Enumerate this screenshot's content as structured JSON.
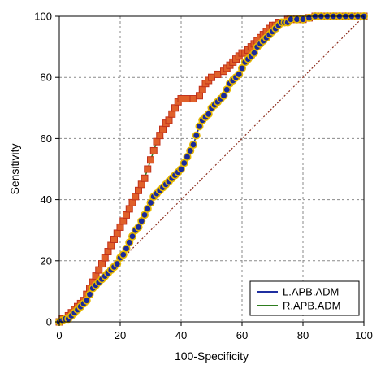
{
  "chart_data": {
    "type": "line",
    "xlabel": "100-Specificity",
    "ylabel": "Sensitivity",
    "xlim": [
      0,
      100
    ],
    "ylim": [
      0,
      100
    ],
    "x_ticks": [
      0,
      20,
      40,
      60,
      80,
      100
    ],
    "y_ticks": [
      0,
      20,
      40,
      60,
      80,
      100
    ],
    "grid": true,
    "legend_position": "bottom-right",
    "reference_line": {
      "from": [
        0,
        0
      ],
      "to": [
        100,
        100
      ],
      "color": "#8b2a1a",
      "style": "dotted"
    },
    "series": [
      {
        "name": "L.APB.ADM",
        "line_color": "#1f2fa0",
        "marker": "circle",
        "marker_fill": "#1a2a9a",
        "marker_edge": "#e6b800",
        "points": [
          [
            0,
            0
          ],
          [
            1,
            0.5
          ],
          [
            2,
            1
          ],
          [
            3,
            1
          ],
          [
            4,
            2
          ],
          [
            5,
            3
          ],
          [
            6,
            4
          ],
          [
            7,
            5
          ],
          [
            8,
            6
          ],
          [
            9,
            7
          ],
          [
            10,
            9
          ],
          [
            11,
            11
          ],
          [
            12,
            12
          ],
          [
            13,
            13
          ],
          [
            14,
            14
          ],
          [
            15,
            15
          ],
          [
            16,
            16
          ],
          [
            17,
            17
          ],
          [
            18,
            18
          ],
          [
            19,
            19
          ],
          [
            20,
            21
          ],
          [
            21,
            22
          ],
          [
            22,
            24
          ],
          [
            23,
            26
          ],
          [
            24,
            28
          ],
          [
            25,
            30
          ],
          [
            26,
            31
          ],
          [
            27,
            33
          ],
          [
            28,
            35
          ],
          [
            29,
            37
          ],
          [
            30,
            39
          ],
          [
            31,
            41
          ],
          [
            32,
            42
          ],
          [
            33,
            43
          ],
          [
            34,
            44
          ],
          [
            35,
            45
          ],
          [
            36,
            46
          ],
          [
            37,
            47
          ],
          [
            38,
            48
          ],
          [
            39,
            49
          ],
          [
            40,
            50
          ],
          [
            41,
            52
          ],
          [
            42,
            54
          ],
          [
            43,
            56
          ],
          [
            44,
            58
          ],
          [
            45,
            61
          ],
          [
            46,
            64
          ],
          [
            47,
            66
          ],
          [
            48,
            67
          ],
          [
            49,
            68
          ],
          [
            50,
            70
          ],
          [
            51,
            71
          ],
          [
            52,
            72
          ],
          [
            53,
            73
          ],
          [
            54,
            74
          ],
          [
            55,
            76
          ],
          [
            56,
            78
          ],
          [
            57,
            79
          ],
          [
            58,
            80
          ],
          [
            59,
            81
          ],
          [
            60,
            83
          ],
          [
            61,
            85
          ],
          [
            62,
            86
          ],
          [
            63,
            87
          ],
          [
            64,
            88
          ],
          [
            65,
            90
          ],
          [
            66,
            91
          ],
          [
            67,
            92
          ],
          [
            68,
            93
          ],
          [
            69,
            94
          ],
          [
            70,
            95
          ],
          [
            71,
            96
          ],
          [
            72,
            97
          ],
          [
            73,
            98
          ],
          [
            74,
            98
          ],
          [
            75,
            98
          ],
          [
            76,
            99
          ],
          [
            78,
            99
          ],
          [
            80,
            99
          ],
          [
            82,
            99.5
          ],
          [
            84,
            100
          ],
          [
            86,
            100
          ],
          [
            88,
            100
          ],
          [
            90,
            100
          ],
          [
            92,
            100
          ],
          [
            94,
            100
          ],
          [
            96,
            100
          ],
          [
            98,
            100
          ],
          [
            100,
            100
          ]
        ]
      },
      {
        "name": "R.APB.ADM",
        "line_color": "#2e7d1f",
        "marker": "square",
        "marker_fill": "#e0602a",
        "marker_edge": "#c0301a",
        "points": [
          [
            0,
            0
          ],
          [
            1,
            1
          ],
          [
            2,
            1
          ],
          [
            3,
            2
          ],
          [
            4,
            3
          ],
          [
            5,
            4
          ],
          [
            6,
            5
          ],
          [
            7,
            6
          ],
          [
            8,
            7
          ],
          [
            9,
            9
          ],
          [
            10,
            11
          ],
          [
            11,
            13
          ],
          [
            12,
            15
          ],
          [
            13,
            17
          ],
          [
            14,
            19
          ],
          [
            15,
            21
          ],
          [
            16,
            23
          ],
          [
            17,
            25
          ],
          [
            18,
            27
          ],
          [
            19,
            29
          ],
          [
            20,
            31
          ],
          [
            21,
            33
          ],
          [
            22,
            35
          ],
          [
            23,
            37
          ],
          [
            24,
            39
          ],
          [
            25,
            41
          ],
          [
            26,
            43
          ],
          [
            27,
            45
          ],
          [
            28,
            47
          ],
          [
            29,
            50
          ],
          [
            30,
            53
          ],
          [
            31,
            56
          ],
          [
            32,
            59
          ],
          [
            33,
            61
          ],
          [
            34,
            63
          ],
          [
            35,
            65
          ],
          [
            36,
            66
          ],
          [
            37,
            68
          ],
          [
            38,
            70
          ],
          [
            39,
            72
          ],
          [
            40,
            73
          ],
          [
            42,
            73
          ],
          [
            44,
            73
          ],
          [
            46,
            74
          ],
          [
            47,
            76
          ],
          [
            48,
            78
          ],
          [
            49,
            79
          ],
          [
            50,
            80
          ],
          [
            52,
            81
          ],
          [
            54,
            82
          ],
          [
            55,
            83
          ],
          [
            56,
            84
          ],
          [
            57,
            85
          ],
          [
            58,
            86
          ],
          [
            59,
            87
          ],
          [
            60,
            88
          ],
          [
            61,
            88
          ],
          [
            62,
            89
          ],
          [
            63,
            90
          ],
          [
            64,
            91
          ],
          [
            65,
            92
          ],
          [
            66,
            93
          ],
          [
            67,
            94
          ],
          [
            68,
            95
          ],
          [
            69,
            96
          ],
          [
            70,
            97
          ],
          [
            71,
            97
          ],
          [
            72,
            98
          ],
          [
            73,
            98
          ],
          [
            74,
            98
          ],
          [
            75,
            99
          ],
          [
            76,
            99
          ],
          [
            78,
            99
          ],
          [
            80,
            99
          ],
          [
            82,
            99.5
          ],
          [
            84,
            100
          ],
          [
            86,
            100
          ],
          [
            88,
            100
          ],
          [
            90,
            100
          ],
          [
            92,
            100
          ],
          [
            94,
            100
          ],
          [
            96,
            100
          ],
          [
            98,
            100
          ],
          [
            100,
            100
          ]
        ]
      }
    ]
  }
}
